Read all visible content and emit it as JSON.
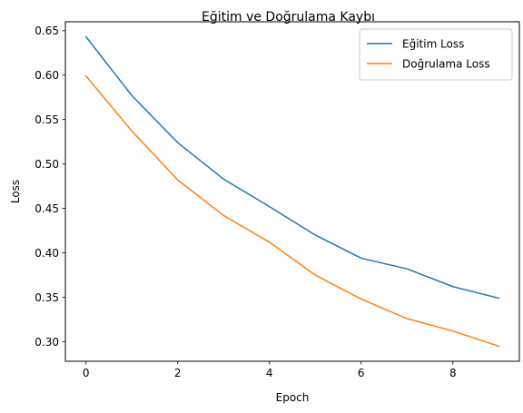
{
  "chart_data": {
    "type": "line",
    "title": "Eğitim ve Doğrulama Kaybı",
    "xlabel": "Epoch",
    "ylabel": "Loss",
    "x": [
      0,
      1,
      2,
      3,
      4,
      5,
      6,
      7,
      8,
      9
    ],
    "xlim": [
      -0.45,
      9.45
    ],
    "ylim": [
      0.278,
      0.66
    ],
    "xticks": [
      0,
      2,
      4,
      6,
      8
    ],
    "yticks": [
      0.3,
      0.35,
      0.4,
      0.45,
      0.5,
      0.55,
      0.6,
      0.65
    ],
    "grid": false,
    "legend_position": "top-right",
    "series": [
      {
        "name": "Eğitim Loss",
        "color": "#1f77b4",
        "values": [
          0.643,
          0.577,
          0.524,
          0.483,
          0.452,
          0.42,
          0.394,
          0.382,
          0.362,
          0.349
        ]
      },
      {
        "name": "Doğrulama Loss",
        "color": "#ff7f0e",
        "values": [
          0.599,
          0.537,
          0.482,
          0.442,
          0.412,
          0.375,
          0.348,
          0.326,
          0.312,
          0.295
        ]
      }
    ]
  }
}
